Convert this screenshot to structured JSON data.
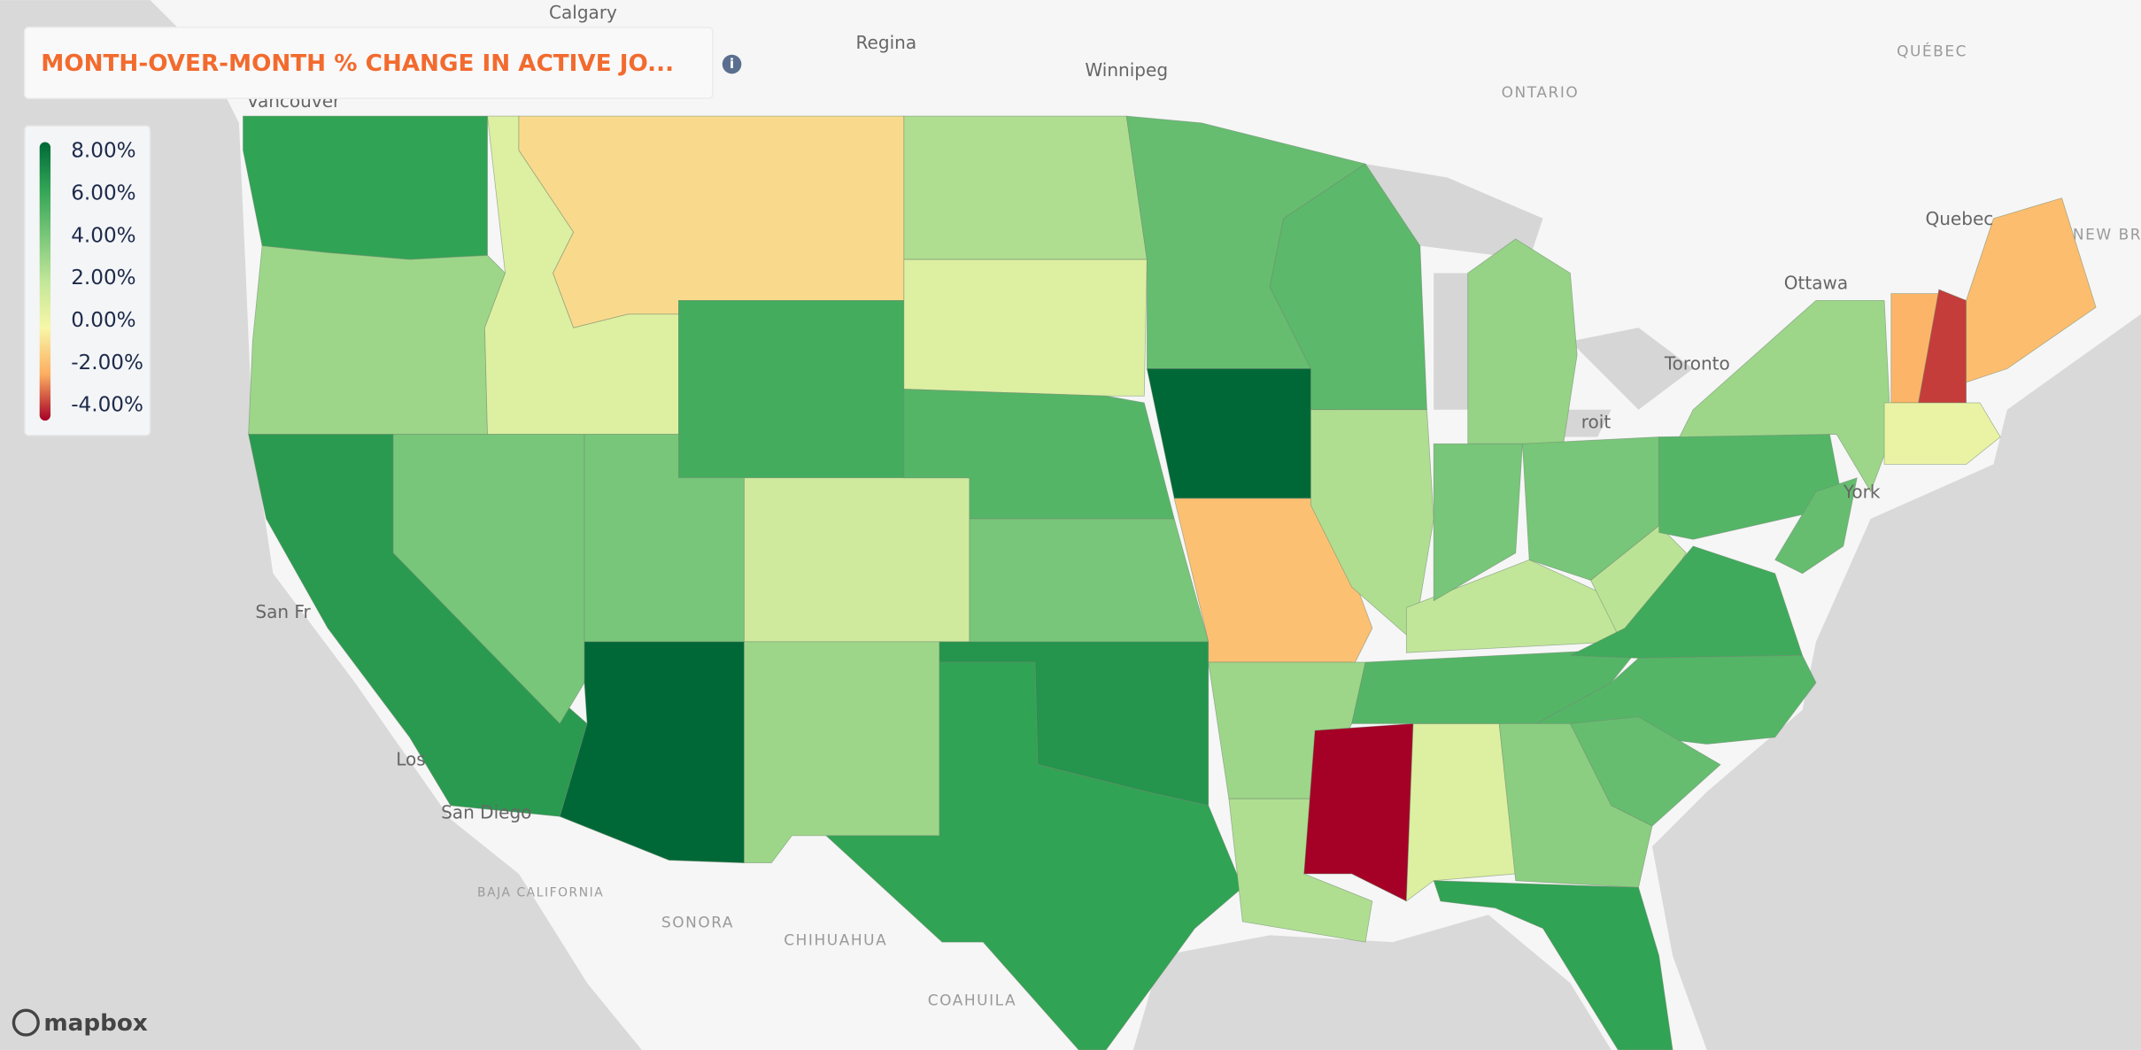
{
  "header": {
    "title": "MONTH-OVER-MONTH % CHANGE IN ACTIVE JO..."
  },
  "legend": {
    "ticks": [
      {
        "value": 8,
        "label": "8.00%"
      },
      {
        "value": 6,
        "label": "6.00%"
      },
      {
        "value": 4,
        "label": "4.00%"
      },
      {
        "value": 2,
        "label": "2.00%"
      },
      {
        "value": 0,
        "label": "0.00%"
      },
      {
        "value": -2,
        "label": "-2.00%"
      },
      {
        "value": -4,
        "label": "-4.00%"
      }
    ],
    "colors": [
      "#006837",
      "#31a354",
      "#78c679",
      "#c2e699",
      "#f7f7a8",
      "#fdae61",
      "#a50026"
    ]
  },
  "region_values": [
    6,
    3,
    6.3,
    1,
    4,
    -0.8,
    5.5,
    4,
    8,
    1.5,
    3,
    2.5,
    1,
    5,
    4,
    6.5,
    6,
    4.5,
    8.3,
    -1.5,
    3,
    2.5,
    4.8,
    2.5,
    3.2,
    -4,
    1,
    5,
    2,
    4,
    4,
    2.2,
    5.6,
    5,
    4.5,
    3.5,
    6,
    5,
    3,
    4.5,
    -1.8,
    -3.3,
    -1.6,
    0.5
  ],
  "places": [
    "Calgary",
    "Regina",
    "Winnipeg",
    "Vancouver",
    "ONTARIO",
    "QUÉBEC",
    "Quebec",
    "Ottawa",
    "Toronto",
    "NEW BRUNSWI",
    "San Fr",
    "Los",
    "San Diego",
    "SONORA",
    "CHIHUAHUA",
    "COAHUILA",
    "BAJA CALIFORNIA",
    "roit",
    "York"
  ],
  "attribution": "mapbox"
}
